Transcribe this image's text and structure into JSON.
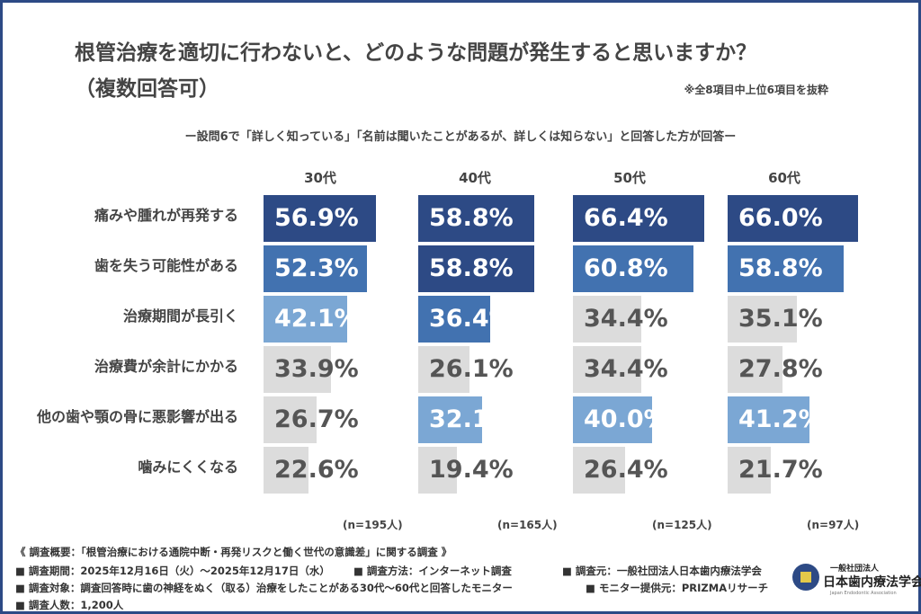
{
  "header": {
    "title_line1": "根管治療を適切に行わないと、どのような問題が発生すると思いますか？",
    "title_line2": "（複数回答可）",
    "note": "※全8項目中上位6項目を抜粋",
    "subtitle": "ー設問6で「詳しく知っている」「名前は聞いたことがあるが、詳しくは知らない」と回答した方が回答ー"
  },
  "colors": {
    "rank1": "#2d4a85",
    "rank2": "#4272b0",
    "rank3": "#7ba7d4",
    "other": "#dcdcdc",
    "text_other": "#555555",
    "frame": "#2d4a85"
  },
  "chart_data": {
    "type": "bar",
    "orientation": "horizontal",
    "categories": [
      "痛みや腫れが再発する",
      "歯を失う可能性がある",
      "治療期間が長引く",
      "治療費が余計にかかる",
      "他の歯や顎の骨に悪影響が出る",
      "噛みにくくなる"
    ],
    "series": [
      {
        "name": "30代",
        "n": "(n=195人)",
        "values": [
          56.9,
          52.3,
          42.1,
          33.9,
          26.7,
          22.6
        ]
      },
      {
        "name": "40代",
        "n": "(n=165人)",
        "values": [
          58.8,
          58.8,
          36.4,
          26.1,
          32.1,
          19.4
        ]
      },
      {
        "name": "50代",
        "n": "(n=125人)",
        "values": [
          66.4,
          60.8,
          34.4,
          34.4,
          40.0,
          26.4
        ]
      },
      {
        "name": "60代",
        "n": "(n=97人)",
        "values": [
          66.0,
          58.8,
          35.1,
          27.8,
          41.2,
          21.7
        ]
      }
    ],
    "unit": "%",
    "highlight": "top 3 values per age group shaded dark/medium/light blue"
  },
  "footer": {
    "overview": "《 調査概要：「根管治療における通院中断・再発リスクと働く世代の意識差」に関する調査 》",
    "period": "■ 調査期間：2025年12月16日（火）～2025年12月17日（水）",
    "method": "■ 調査方法：インターネット調査",
    "source": "■ 調査元：一般社団法人日本歯内療法学会",
    "target": "■ 調査対象：調査回答時に歯の神経をぬく（取る）治療をしたことがある30代～60代と回答したモニター",
    "provider": "■ モニター提供元：PRIZMAリサーチ",
    "count": "■ 調査人数：1,200人"
  },
  "logo": {
    "small": "一般社団法人",
    "name": "日本歯内療法学会",
    "english": "Japan Endodontic Association"
  }
}
